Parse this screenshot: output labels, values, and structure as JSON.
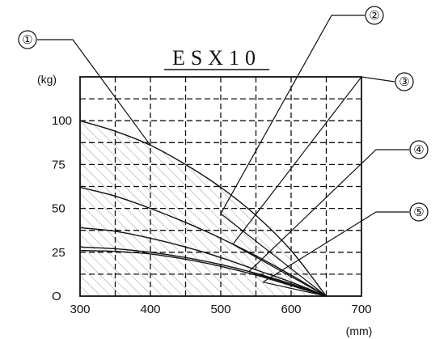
{
  "chart_data": {
    "type": "line",
    "title": "ESX10",
    "ylabel_unit": "(kg)",
    "xlabel_unit": "(mm)",
    "xlim": [
      300,
      700
    ],
    "ylim": [
      0,
      125
    ],
    "x_ticks": [
      300,
      400,
      500,
      600,
      700
    ],
    "y_ticks": [
      0,
      25,
      50,
      75,
      100
    ],
    "x_tick_labels": [
      "300",
      "400",
      "500",
      "600",
      "700"
    ],
    "y_tick_labels": [
      "O",
      "25",
      "50",
      "75",
      "100"
    ],
    "grid": true,
    "shaded_region": "under-curve-1",
    "series": [
      {
        "name": "①",
        "x": [
          300,
          350,
          400,
          450,
          500,
          550,
          600,
          650
        ],
        "y": [
          100,
          94,
          86,
          75,
          62,
          46,
          26,
          0
        ]
      },
      {
        "name": "②",
        "x": [
          300,
          350,
          400,
          450,
          500,
          550,
          600,
          650
        ],
        "y": [
          62,
          57,
          50,
          42,
          33,
          23,
          12,
          0
        ]
      },
      {
        "name": "③",
        "x": [
          300,
          350,
          400,
          450,
          500,
          550,
          600,
          650
        ],
        "y": [
          39,
          37,
          33,
          28,
          22,
          15,
          8,
          0
        ]
      },
      {
        "name": "④",
        "x": [
          300,
          350,
          400,
          450,
          500,
          550,
          600,
          650
        ],
        "y": [
          28,
          27,
          25,
          22,
          18,
          13,
          7,
          0
        ]
      },
      {
        "name": "⑤",
        "x": [
          300,
          350,
          400,
          450,
          500,
          550,
          600,
          650
        ],
        "y": [
          26,
          25.5,
          24,
          21,
          17,
          12,
          6,
          0
        ]
      }
    ],
    "radial_lines": [
      {
        "from": [
          650,
          0
        ],
        "to": [
          500,
          47
        ]
      },
      {
        "from": [
          650,
          0
        ],
        "to": [
          515,
          30
        ]
      },
      {
        "from": [
          650,
          0
        ],
        "to": [
          540,
          14
        ]
      },
      {
        "from": [
          650,
          0
        ],
        "to": [
          560,
          8
        ]
      }
    ],
    "callouts": [
      {
        "label": "①",
        "target_series": 0
      },
      {
        "label": "②",
        "target_series": 1
      },
      {
        "label": "③",
        "target_series": 2
      },
      {
        "label": "④",
        "target_series": 3
      },
      {
        "label": "⑤",
        "target_series": 4
      }
    ]
  }
}
